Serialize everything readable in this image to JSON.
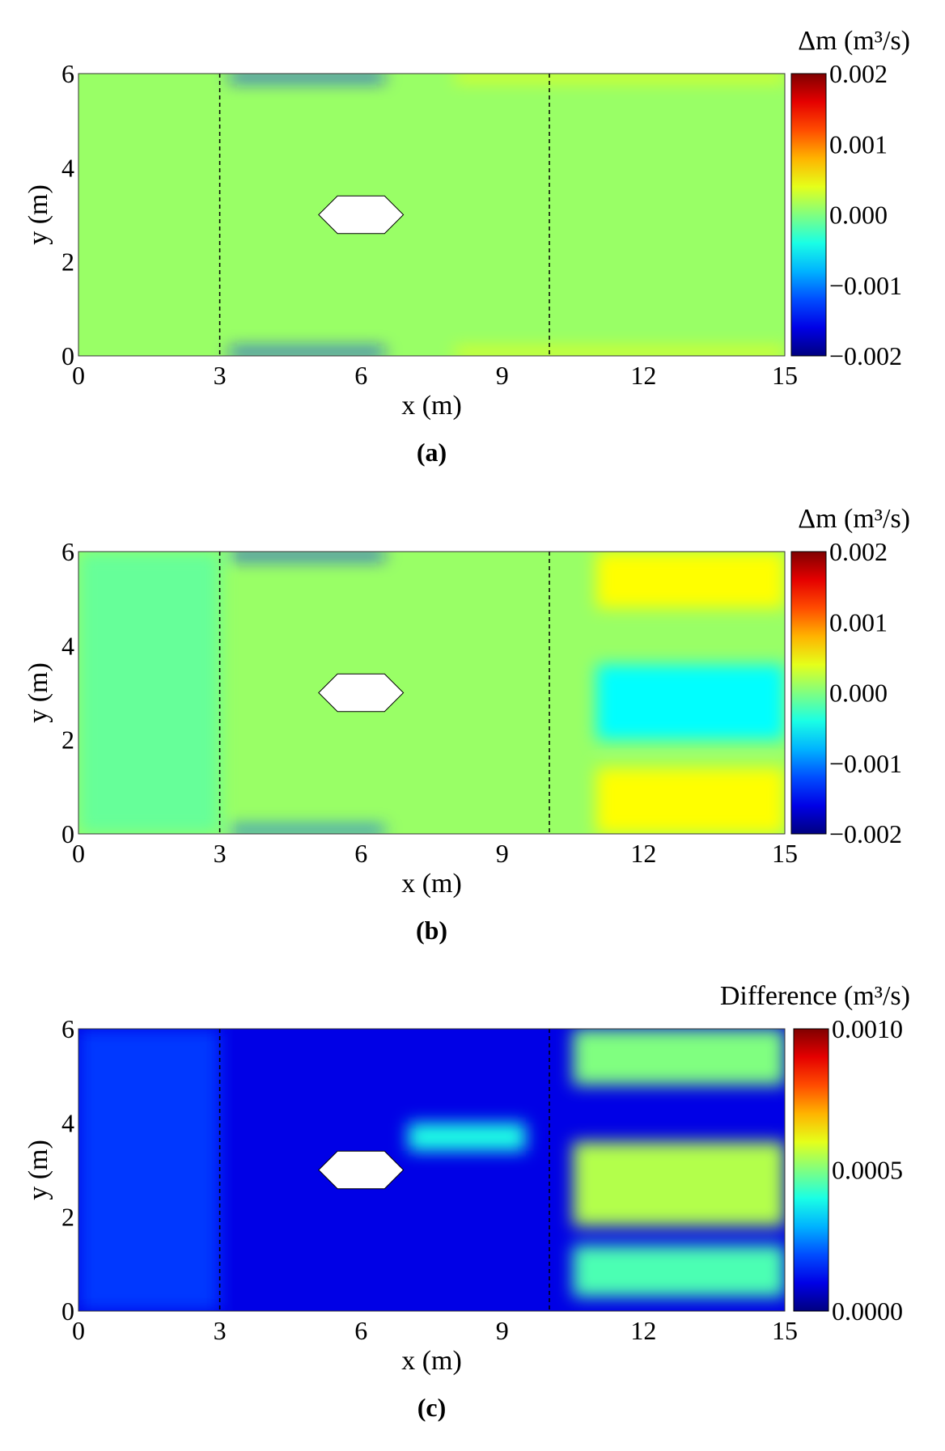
{
  "chart_data": [
    {
      "type": "heatmap",
      "caption": "(a)",
      "xlabel": "x (m)",
      "ylabel": "y (m)",
      "colorbar_label": "Δm (m³/s)",
      "xlim": [
        0,
        15
      ],
      "ylim": [
        0,
        6
      ],
      "xticks": [
        "0",
        "3",
        "6",
        "9",
        "12",
        "15"
      ],
      "yticks": [
        "0",
        "2",
        "4",
        "6"
      ],
      "clim": [
        -0.002,
        0.002
      ],
      "colorbar_ticks": [
        "0.002",
        "0.001",
        "0.000",
        "−0.001",
        "−0.002"
      ],
      "colormap": "jet",
      "dashed_lines_x": [
        3,
        10
      ],
      "obstacle": [
        [
          5.1,
          3
        ],
        [
          5.5,
          3.4
        ],
        [
          6.5,
          3.4
        ],
        [
          6.9,
          3
        ],
        [
          6.5,
          2.6
        ],
        [
          5.5,
          2.6
        ]
      ],
      "background_value": 0.0001,
      "regions": [
        {
          "x": [
            3.2,
            6.5
          ],
          "y": [
            5.85,
            6
          ],
          "value": -0.0014
        },
        {
          "x": [
            3.2,
            6.5
          ],
          "y": [
            0,
            0.15
          ],
          "value": -0.0014
        },
        {
          "x": [
            8,
            15
          ],
          "y": [
            5.85,
            6
          ],
          "value": 0.0005
        },
        {
          "x": [
            8,
            15
          ],
          "y": [
            0,
            0.15
          ],
          "value": 0.0005
        }
      ]
    },
    {
      "type": "heatmap",
      "caption": "(b)",
      "xlabel": "x (m)",
      "ylabel": "y (m)",
      "colorbar_label": "Δm (m³/s)",
      "xlim": [
        0,
        15
      ],
      "ylim": [
        0,
        6
      ],
      "xticks": [
        "0",
        "3",
        "6",
        "9",
        "12",
        "15"
      ],
      "yticks": [
        "0",
        "2",
        "4",
        "6"
      ],
      "clim": [
        -0.002,
        0.002
      ],
      "colorbar_ticks": [
        "0.002",
        "0.001",
        "0.000",
        "−0.001",
        "−0.002"
      ],
      "colormap": "jet",
      "dashed_lines_x": [
        3,
        10
      ],
      "obstacle": [
        [
          5.1,
          3
        ],
        [
          5.5,
          3.4
        ],
        [
          6.5,
          3.4
        ],
        [
          6.9,
          3
        ],
        [
          6.5,
          2.6
        ],
        [
          5.5,
          2.6
        ]
      ],
      "background_value": 0.0001,
      "regions": [
        {
          "x": [
            3.2,
            6.5
          ],
          "y": [
            5.85,
            6
          ],
          "value": -0.0014
        },
        {
          "x": [
            3.2,
            6.5
          ],
          "y": [
            0,
            0.15
          ],
          "value": -0.0012
        },
        {
          "x": [
            0,
            3
          ],
          "y": [
            0,
            6
          ],
          "value": -0.0001
        },
        {
          "x": [
            11,
            15
          ],
          "y": [
            4.8,
            6
          ],
          "value": 0.0005
        },
        {
          "x": [
            11,
            15
          ],
          "y": [
            0,
            1.4
          ],
          "value": 0.0005
        },
        {
          "x": [
            11,
            15
          ],
          "y": [
            2,
            3.6
          ],
          "value": -0.0005
        }
      ]
    },
    {
      "type": "heatmap",
      "caption": "(c)",
      "xlabel": "x (m)",
      "ylabel": "y (m)",
      "colorbar_label": "Difference (m³/s)",
      "xlim": [
        0,
        15
      ],
      "ylim": [
        0,
        6
      ],
      "xticks": [
        "0",
        "3",
        "6",
        "9",
        "12",
        "15"
      ],
      "yticks": [
        "0",
        "2",
        "4",
        "6"
      ],
      "clim": [
        0,
        0.001
      ],
      "colorbar_ticks": [
        "0.0010",
        "0.0005",
        "0.0000"
      ],
      "colormap": "jet",
      "dashed_lines_x": [
        3,
        10
      ],
      "obstacle": [
        [
          5.1,
          3
        ],
        [
          5.5,
          3.4
        ],
        [
          6.5,
          3.4
        ],
        [
          6.9,
          3
        ],
        [
          6.5,
          2.6
        ],
        [
          5.5,
          2.6
        ]
      ],
      "background_value": 0.0001,
      "regions": [
        {
          "x": [
            0,
            3
          ],
          "y": [
            0,
            6
          ],
          "value": 0.00018
        },
        {
          "x": [
            10.5,
            15
          ],
          "y": [
            4.8,
            6
          ],
          "value": 0.0005
        },
        {
          "x": [
            10.5,
            15
          ],
          "y": [
            1.8,
            3.6
          ],
          "value": 0.00055
        },
        {
          "x": [
            10.5,
            15
          ],
          "y": [
            0.3,
            1.4
          ],
          "value": 0.00045
        },
        {
          "x": [
            7,
            9.5
          ],
          "y": [
            3.4,
            4
          ],
          "value": 0.0004
        }
      ]
    }
  ]
}
